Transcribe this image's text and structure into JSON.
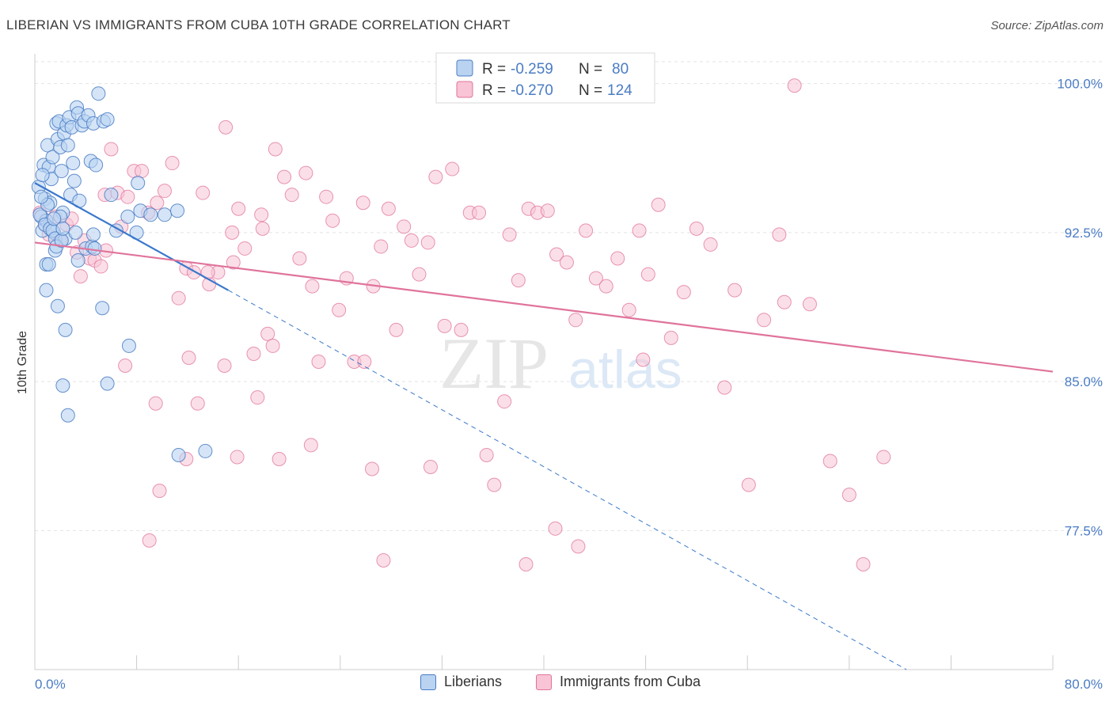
{
  "header": {
    "title": "LIBERIAN VS IMMIGRANTS FROM CUBA 10TH GRADE CORRELATION CHART",
    "source": "Source: ZipAtlas.com"
  },
  "watermark": {
    "zip": "ZIP",
    "atlas": "atlas"
  },
  "colors": {
    "blue": "#4a7cc4",
    "blue_fill": "#b9d3f1",
    "blue_line": "#3a78cc",
    "pink": "#e0739b",
    "pink_fill": "#f8c4d6",
    "pink_line": "#e0739b",
    "grid": "#e3e3e3"
  },
  "legend_top": {
    "rows": [
      {
        "r_label": "R =",
        "r_value": "-0.259",
        "n_label": "N =",
        "n_value": "80"
      },
      {
        "r_label": "R =",
        "r_value": "-0.270",
        "n_label": "N =",
        "n_value": "124"
      }
    ]
  },
  "legend_bottom": {
    "items": [
      {
        "label": "Liberians"
      },
      {
        "label": "Immigrants from Cuba"
      }
    ]
  },
  "chart_data": {
    "type": "scatter",
    "title": "LIBERIAN VS IMMIGRANTS FROM CUBA 10TH GRADE CORRELATION CHART",
    "xlabel": "",
    "ylabel": "10th Grade",
    "xlim": [
      0,
      80
    ],
    "ylim": [
      70.5,
      101.5
    ],
    "x_tick_labels": [
      "0.0%",
      "80.0%"
    ],
    "y_ticks": [
      77.5,
      85.0,
      92.5,
      100.0
    ],
    "y_tick_labels": [
      "77.5%",
      "85.0%",
      "92.5%",
      "100.0%"
    ],
    "grid": true,
    "series": [
      {
        "name": "Liberians",
        "r": -0.259,
        "n": 80,
        "trend": {
          "x0": 0,
          "y0": 95.0,
          "x1": 15.2,
          "y1": 89.6,
          "dash_x1": 68.5,
          "dash_y1": 70.5
        },
        "points": [
          [
            0.3,
            94.8
          ],
          [
            0.5,
            93.3
          ],
          [
            0.6,
            92.6
          ],
          [
            0.7,
            95.9
          ],
          [
            0.8,
            94.2
          ],
          [
            0.9,
            93.1
          ],
          [
            1.0,
            96.9
          ],
          [
            1.1,
            95.8
          ],
          [
            1.2,
            94.0
          ],
          [
            1.3,
            95.2
          ],
          [
            1.4,
            96.3
          ],
          [
            1.5,
            92.5
          ],
          [
            1.6,
            91.6
          ],
          [
            1.7,
            98.0
          ],
          [
            1.8,
            97.2
          ],
          [
            1.9,
            98.1
          ],
          [
            2.0,
            96.8
          ],
          [
            2.1,
            95.6
          ],
          [
            2.2,
            93.5
          ],
          [
            2.3,
            97.5
          ],
          [
            2.5,
            97.9
          ],
          [
            2.6,
            96.9
          ],
          [
            2.7,
            98.3
          ],
          [
            2.8,
            94.4
          ],
          [
            2.9,
            97.8
          ],
          [
            3.0,
            96.0
          ],
          [
            3.1,
            95.1
          ],
          [
            3.3,
            98.8
          ],
          [
            3.4,
            98.5
          ],
          [
            3.5,
            94.1
          ],
          [
            3.7,
            97.9
          ],
          [
            3.9,
            98.1
          ],
          [
            4.2,
            98.4
          ],
          [
            4.4,
            96.1
          ],
          [
            4.6,
            98.0
          ],
          [
            4.8,
            95.9
          ],
          [
            5.0,
            99.5
          ],
          [
            5.4,
            98.1
          ],
          [
            5.7,
            98.2
          ],
          [
            0.4,
            93.4
          ],
          [
            0.6,
            95.4
          ],
          [
            0.8,
            92.9
          ],
          [
            1.0,
            93.9
          ],
          [
            1.2,
            92.7
          ],
          [
            1.4,
            92.6
          ],
          [
            1.6,
            92.2
          ],
          [
            2.0,
            93.3
          ],
          [
            2.4,
            92.2
          ],
          [
            0.5,
            94.3
          ],
          [
            0.9,
            90.9
          ],
          [
            1.1,
            90.9
          ],
          [
            1.7,
            91.8
          ],
          [
            2.1,
            92.1
          ],
          [
            3.2,
            92.5
          ],
          [
            4.0,
            91.7
          ],
          [
            4.5,
            91.8
          ],
          [
            0.9,
            89.6
          ],
          [
            1.8,
            88.8
          ],
          [
            2.4,
            87.6
          ],
          [
            5.3,
            88.7
          ],
          [
            2.2,
            84.8
          ],
          [
            2.6,
            83.3
          ],
          [
            5.7,
            84.9
          ],
          [
            7.4,
            86.8
          ],
          [
            6.0,
            94.4
          ],
          [
            8.1,
            95.0
          ],
          [
            8.3,
            93.6
          ],
          [
            9.1,
            93.4
          ],
          [
            10.2,
            93.4
          ],
          [
            11.2,
            93.6
          ],
          [
            6.4,
            92.6
          ],
          [
            7.3,
            93.3
          ],
          [
            8.0,
            92.5
          ],
          [
            4.6,
            92.4
          ],
          [
            3.4,
            91.1
          ],
          [
            4.7,
            91.7
          ],
          [
            11.3,
            81.3
          ],
          [
            13.4,
            81.5
          ],
          [
            1.5,
            93.2
          ],
          [
            2.2,
            92.7
          ]
        ]
      },
      {
        "name": "Immigrants from Cuba",
        "r": -0.27,
        "n": 124,
        "trend": {
          "x0": 0,
          "y0": 92.0,
          "x1": 80,
          "y1": 85.5
        },
        "points": [
          [
            0.4,
            93.5
          ],
          [
            0.8,
            92.9
          ],
          [
            1.1,
            92.4
          ],
          [
            1.6,
            93.3
          ],
          [
            2.0,
            92.1
          ],
          [
            2.5,
            92.9
          ],
          [
            2.9,
            93.2
          ],
          [
            3.3,
            91.5
          ],
          [
            3.6,
            90.3
          ],
          [
            3.9,
            92.1
          ],
          [
            4.3,
            91.2
          ],
          [
            4.7,
            91.1
          ],
          [
            5.2,
            90.8
          ],
          [
            5.5,
            94.4
          ],
          [
            6.0,
            96.7
          ],
          [
            6.5,
            94.5
          ],
          [
            6.8,
            92.8
          ],
          [
            7.3,
            94.3
          ],
          [
            7.8,
            95.6
          ],
          [
            8.4,
            95.6
          ],
          [
            8.9,
            93.5
          ],
          [
            9.6,
            94.0
          ],
          [
            10.2,
            94.6
          ],
          [
            10.8,
            96.0
          ],
          [
            11.3,
            89.2
          ],
          [
            11.9,
            90.7
          ],
          [
            12.5,
            90.5
          ],
          [
            13.2,
            94.5
          ],
          [
            13.7,
            89.9
          ],
          [
            14.4,
            90.5
          ],
          [
            15.0,
            97.8
          ],
          [
            15.5,
            92.5
          ],
          [
            16.0,
            93.7
          ],
          [
            16.5,
            91.7
          ],
          [
            17.2,
            86.4
          ],
          [
            17.8,
            93.4
          ],
          [
            18.3,
            87.4
          ],
          [
            18.9,
            96.7
          ],
          [
            19.6,
            95.3
          ],
          [
            20.2,
            94.4
          ],
          [
            20.8,
            91.2
          ],
          [
            21.3,
            95.5
          ],
          [
            21.8,
            89.8
          ],
          [
            22.3,
            86.0
          ],
          [
            22.9,
            94.3
          ],
          [
            23.4,
            93.1
          ],
          [
            23.9,
            88.6
          ],
          [
            24.5,
            90.2
          ],
          [
            25.1,
            86.0
          ],
          [
            25.8,
            94.0
          ],
          [
            26.6,
            89.8
          ],
          [
            27.2,
            91.8
          ],
          [
            27.8,
            93.7
          ],
          [
            28.4,
            87.6
          ],
          [
            29.0,
            92.8
          ],
          [
            29.6,
            92.1
          ],
          [
            30.2,
            90.4
          ],
          [
            30.9,
            92.0
          ],
          [
            31.5,
            95.3
          ],
          [
            32.2,
            87.8
          ],
          [
            32.8,
            95.7
          ],
          [
            33.5,
            87.6
          ],
          [
            34.2,
            93.5
          ],
          [
            34.9,
            93.5
          ],
          [
            35.5,
            81.3
          ],
          [
            36.1,
            79.8
          ],
          [
            37.3,
            92.4
          ],
          [
            38.0,
            90.1
          ],
          [
            38.8,
            93.7
          ],
          [
            39.5,
            93.5
          ],
          [
            40.3,
            93.6
          ],
          [
            41.0,
            91.4
          ],
          [
            41.8,
            91.0
          ],
          [
            42.5,
            88.1
          ],
          [
            43.3,
            92.6
          ],
          [
            44.1,
            90.2
          ],
          [
            44.9,
            89.8
          ],
          [
            45.8,
            91.2
          ],
          [
            46.7,
            88.6
          ],
          [
            47.5,
            92.6
          ],
          [
            48.2,
            90.4
          ],
          [
            49.0,
            93.9
          ],
          [
            50.0,
            87.2
          ],
          [
            51.0,
            89.5
          ],
          [
            52.0,
            92.7
          ],
          [
            53.1,
            91.9
          ],
          [
            54.2,
            84.7
          ],
          [
            55.0,
            89.6
          ],
          [
            56.1,
            79.8
          ],
          [
            57.3,
            88.1
          ],
          [
            58.5,
            92.4
          ],
          [
            59.7,
            99.9
          ],
          [
            60.9,
            88.9
          ],
          [
            62.5,
            81.0
          ],
          [
            64.0,
            79.3
          ],
          [
            65.1,
            75.8
          ],
          [
            66.7,
            81.2
          ],
          [
            5.6,
            91.6
          ],
          [
            7.1,
            85.8
          ],
          [
            9.5,
            83.9
          ],
          [
            11.9,
            81.1
          ],
          [
            9.8,
            79.5
          ],
          [
            9.0,
            77.0
          ],
          [
            12.1,
            86.2
          ],
          [
            14.9,
            85.8
          ],
          [
            17.5,
            84.2
          ],
          [
            19.2,
            81.1
          ],
          [
            12.8,
            83.9
          ],
          [
            18.7,
            86.8
          ],
          [
            15.9,
            81.2
          ],
          [
            21.7,
            81.8
          ],
          [
            25.9,
            86.0
          ],
          [
            26.5,
            80.6
          ],
          [
            27.4,
            76.0
          ],
          [
            31.1,
            80.7
          ],
          [
            36.9,
            84.0
          ],
          [
            38.6,
            75.8
          ],
          [
            40.9,
            77.6
          ],
          [
            42.7,
            76.7
          ],
          [
            47.8,
            86.1
          ],
          [
            58.9,
            89.0
          ],
          [
            13.6,
            90.5
          ],
          [
            15.6,
            91.0
          ],
          [
            17.9,
            92.7
          ]
        ]
      }
    ]
  }
}
